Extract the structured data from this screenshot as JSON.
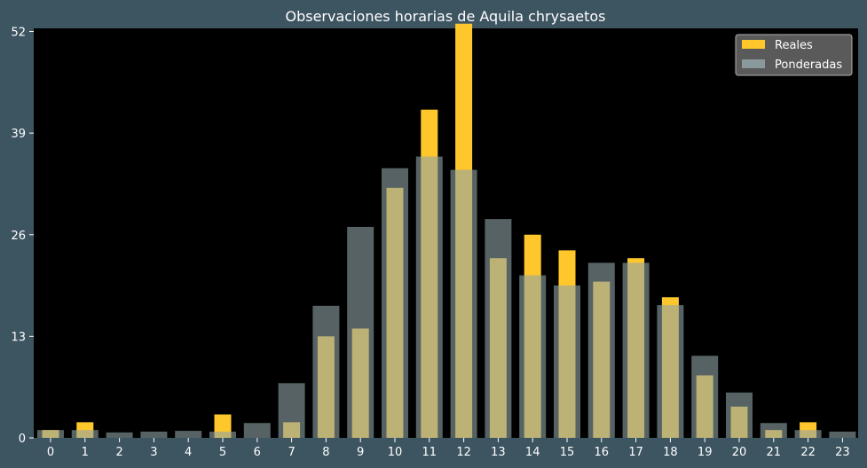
{
  "chart_data": {
    "type": "bar",
    "title": "Observaciones horarias de Aquila chrysaetos",
    "xlabel": "",
    "ylabel": "",
    "categories": [
      "0",
      "1",
      "2",
      "3",
      "4",
      "5",
      "6",
      "7",
      "8",
      "9",
      "10",
      "11",
      "12",
      "13",
      "14",
      "15",
      "16",
      "17",
      "18",
      "19",
      "20",
      "21",
      "22",
      "23"
    ],
    "yticks": [
      0,
      13,
      26,
      39,
      52
    ],
    "ylim": [
      0,
      52.4
    ],
    "grid": false,
    "legend_position": "top-right",
    "series": [
      {
        "name": "Reales",
        "color": "#ffc72c",
        "values": [
          1,
          2,
          0,
          0,
          0,
          3,
          0,
          2,
          13,
          14,
          32,
          42,
          53,
          23,
          26,
          24,
          20,
          23,
          18,
          8,
          4,
          1,
          2,
          0
        ]
      },
      {
        "name": "Ponderadas",
        "color": "#8fa3a6",
        "opacity": 0.6,
        "values": [
          1.0,
          1.0,
          0.7,
          0.8,
          0.9,
          0.8,
          1.9,
          7.0,
          16.9,
          27.0,
          34.5,
          36.0,
          34.3,
          28.0,
          20.8,
          19.5,
          22.4,
          22.4,
          17.0,
          10.5,
          5.8,
          1.9,
          1.0,
          0.8
        ]
      }
    ]
  }
}
